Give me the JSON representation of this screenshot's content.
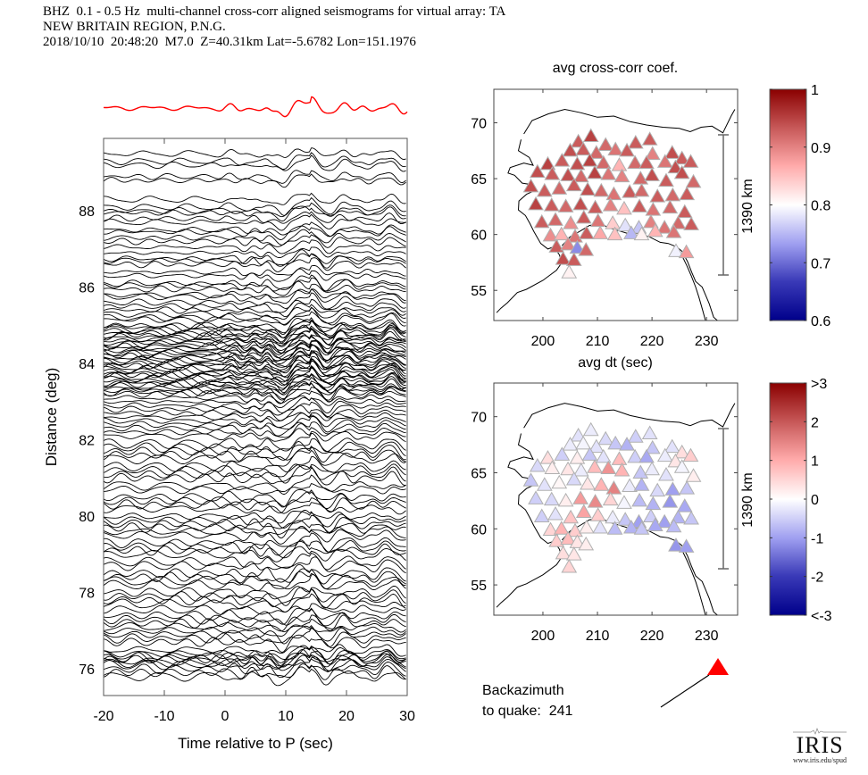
{
  "header": {
    "line1": "BHZ  0.1 - 0.5 Hz  multi-channel cross-corr aligned seismograms for virtual array: TA",
    "line2": "NEW BRITAIN REGION, P.N.G.",
    "line3": "2018/10/10  20:48:20  M7.0  Z=40.31km Lat=-5.6782 Lon=151.1976"
  },
  "backazimuth": {
    "line1": "Backazimuth",
    "line2": "to quake:  241",
    "value_deg": 241,
    "marker_color": "#ff0000"
  },
  "logo": {
    "name": "IRIS",
    "url_text": "www.iris.edu/spud"
  },
  "chart_data": [
    {
      "type": "line",
      "name": "record-section",
      "title": "",
      "xlabel": "Time relative to P (sec)",
      "ylabel": "Distance (deg)",
      "xlim": [
        -20,
        30
      ],
      "ylim": [
        75.3,
        89.9
      ],
      "xticks": [
        -20,
        -10,
        0,
        10,
        20,
        30
      ],
      "yticks": [
        76,
        78,
        80,
        82,
        84,
        86,
        88
      ],
      "trace_color": "#000000",
      "stack_color": "#ff0000",
      "stack_label": "stacked reference trace",
      "trace_distances": [
        89.5,
        89.3,
        89.2,
        88.9,
        88.8,
        88.3,
        88.1,
        88.0,
        87.95,
        87.8,
        87.7,
        87.5,
        87.45,
        87.3,
        87.2,
        87.05,
        86.9,
        86.75,
        86.7,
        86.6,
        86.4,
        86.3,
        86.1,
        86.05,
        85.95,
        85.8,
        85.75,
        85.6,
        85.5,
        85.4,
        85.3,
        85.2,
        85.15,
        85.0,
        84.95,
        84.9,
        84.85,
        84.8,
        84.75,
        84.7,
        84.65,
        84.6,
        84.55,
        84.5,
        84.45,
        84.4,
        84.35,
        84.3,
        84.25,
        84.2,
        84.15,
        84.1,
        84.05,
        84.0,
        83.95,
        83.9,
        83.85,
        83.8,
        83.75,
        83.7,
        83.65,
        83.6,
        83.55,
        83.5,
        83.45,
        83.4,
        83.35,
        83.3,
        83.25,
        83.2,
        83.1,
        83.0,
        82.9,
        82.8,
        82.7,
        82.6,
        82.5,
        82.4,
        82.3,
        82.2,
        82.1,
        81.9,
        81.8,
        81.7,
        81.6,
        81.5,
        81.3,
        81.2,
        81.1,
        81.0,
        80.8,
        80.7,
        80.5,
        80.4,
        80.3,
        80.2,
        80.0,
        79.9,
        79.8,
        79.7,
        79.6,
        79.5,
        79.3,
        79.2,
        79.1,
        79.0,
        78.8,
        78.7,
        78.5,
        78.4,
        78.3,
        78.2,
        78.0,
        77.9,
        77.8,
        77.7,
        77.55,
        77.4,
        77.3,
        77.2,
        77.1,
        77.0,
        76.9,
        76.8,
        76.7,
        76.5,
        76.4,
        76.35,
        76.3,
        76.25,
        76.2,
        76.15,
        76.1,
        76.0,
        75.9,
        75.8
      ]
    },
    {
      "type": "scatter",
      "name": "map-cross-corr",
      "title": "avg cross-corr coef.",
      "xlabel": "",
      "ylabel": "",
      "xlim": [
        191,
        235.7
      ],
      "ylim": [
        52.3,
        73.0
      ],
      "xticks": [
        200,
        210,
        220,
        230
      ],
      "yticks": [
        55,
        60,
        65,
        70
      ],
      "scale_bar_label": "1390 km",
      "colorbar": {
        "min": 0.6,
        "max": 1,
        "ticks": [
          "0.6",
          "0.7",
          "0.8",
          "0.9",
          "1"
        ],
        "colormap": "blue-white-red"
      }
    },
    {
      "type": "scatter",
      "name": "map-dt",
      "title": "avg dt (sec)",
      "xlabel": "",
      "ylabel": "",
      "xlim": [
        191,
        235.7
      ],
      "ylim": [
        52.3,
        73.0
      ],
      "xticks": [
        200,
        210,
        220,
        230
      ],
      "yticks": [
        55,
        60,
        65,
        70
      ],
      "scale_bar_label": "1390 km",
      "colorbar": {
        "min": -3,
        "max": 3,
        "ticks": [
          "<-3",
          "-2",
          "-1",
          "0",
          "1",
          "2",
          ">3"
        ],
        "colormap": "blue-white-red"
      }
    }
  ],
  "stations": [
    [
      206.5,
      68.3,
      0.93,
      -0.3
    ],
    [
      208.8,
      68.8,
      0.95,
      -0.2
    ],
    [
      211.5,
      68.0,
      0.92,
      -0.4
    ],
    [
      217.0,
      68.2,
      0.93,
      -0.5
    ],
    [
      219.6,
      68.5,
      0.93,
      -0.3
    ],
    [
      205.0,
      67.5,
      0.94,
      -0.2
    ],
    [
      207.4,
      67.6,
      0.93,
      -0.1
    ],
    [
      209.8,
      67.3,
      0.92,
      -0.3
    ],
    [
      213.3,
      67.6,
      0.91,
      -0.6
    ],
    [
      215.4,
      67.5,
      0.93,
      -0.8
    ],
    [
      220.1,
      67.2,
      0.9,
      -0.6
    ],
    [
      223.7,
      67.3,
      0.94,
      -0.3
    ],
    [
      225.5,
      66.8,
      0.93,
      0.4
    ],
    [
      200.9,
      66.3,
      0.95,
      0.4
    ],
    [
      203.5,
      66.6,
      0.93,
      -0.5
    ],
    [
      206.3,
      66.3,
      0.94,
      0.2
    ],
    [
      208.6,
      66.6,
      0.95,
      -0.6
    ],
    [
      211.1,
      66.4,
      0.92,
      -0.3
    ],
    [
      214.0,
      66.2,
      0.86,
      0.8
    ],
    [
      216.9,
      66.4,
      0.92,
      -0.5
    ],
    [
      219.0,
      66.4,
      0.93,
      -0.9
    ],
    [
      222.4,
      66.5,
      0.91,
      -0.2
    ],
    [
      224.3,
      66.0,
      0.94,
      0.3
    ],
    [
      227.1,
      66.5,
      0.93,
      0.6
    ],
    [
      199.0,
      65.6,
      0.94,
      -0.4
    ],
    [
      201.7,
      65.4,
      0.93,
      0.2
    ],
    [
      204.6,
      65.3,
      0.94,
      0.3
    ],
    [
      207.0,
      65.2,
      0.92,
      -0.2
    ],
    [
      209.5,
      65.5,
      0.95,
      0.8
    ],
    [
      212.0,
      65.4,
      0.91,
      1.3
    ],
    [
      214.5,
      65.2,
      0.9,
      0.9
    ],
    [
      217.9,
      65.0,
      0.92,
      -0.6
    ],
    [
      220.0,
      65.3,
      0.94,
      -0.2
    ],
    [
      222.6,
      64.8,
      0.93,
      -0.3
    ],
    [
      225.5,
      65.5,
      0.94,
      -0.1
    ],
    [
      227.6,
      64.7,
      0.92,
      0.2
    ],
    [
      197.8,
      64.3,
      0.94,
      -0.6
    ],
    [
      200.3,
      63.9,
      0.93,
      -0.3
    ],
    [
      203.0,
      64.1,
      0.92,
      0.1
    ],
    [
      205.7,
      64.4,
      0.93,
      -0.4
    ],
    [
      208.2,
      64.0,
      0.94,
      0.3
    ],
    [
      210.7,
      63.9,
      0.92,
      0.9
    ],
    [
      213.0,
      63.6,
      0.91,
      1.5
    ],
    [
      215.9,
      63.8,
      0.93,
      -0.2
    ],
    [
      218.1,
      63.9,
      0.92,
      -0.8
    ],
    [
      221.0,
      63.4,
      0.93,
      -0.4
    ],
    [
      223.8,
      63.5,
      0.92,
      -1.0
    ],
    [
      226.4,
      63.6,
      0.93,
      -0.6
    ],
    [
      198.7,
      62.7,
      0.95,
      -0.5
    ],
    [
      201.6,
      62.6,
      0.93,
      -0.4
    ],
    [
      204.2,
      62.5,
      0.92,
      0.2
    ],
    [
      206.9,
      62.7,
      0.94,
      1.2
    ],
    [
      209.6,
      62.4,
      0.93,
      1.4
    ],
    [
      212.4,
      62.6,
      0.9,
      0.5
    ],
    [
      214.9,
      62.3,
      0.85,
      -0.1
    ],
    [
      217.7,
      62.5,
      0.93,
      -0.7
    ],
    [
      220.2,
      62.2,
      0.91,
      -0.8
    ],
    [
      223.3,
      62.4,
      0.92,
      -1.1
    ],
    [
      226.0,
      62.0,
      0.93,
      -0.9
    ],
    [
      199.8,
      61.1,
      0.93,
      -0.5
    ],
    [
      202.3,
      61.3,
      0.92,
      -0.3
    ],
    [
      205.1,
      61.0,
      0.89,
      0.7
    ],
    [
      207.5,
      61.5,
      0.93,
      1.1
    ],
    [
      210.1,
      61.2,
      0.91,
      0.6
    ],
    [
      212.8,
      61.0,
      0.84,
      -0.2
    ],
    [
      215.1,
      60.8,
      0.78,
      -0.6
    ],
    [
      217.6,
      60.6,
      0.76,
      -1.0
    ],
    [
      219.8,
      61.1,
      0.9,
      -0.5
    ],
    [
      222.3,
      60.6,
      0.91,
      -1.0
    ],
    [
      224.8,
      61.0,
      0.92,
      -0.8
    ],
    [
      227.2,
      60.9,
      0.93,
      -0.6
    ],
    [
      201.4,
      59.9,
      0.89,
      0.5
    ],
    [
      203.4,
      60.0,
      0.86,
      0.9
    ],
    [
      205.9,
      59.8,
      0.91,
      0.6
    ],
    [
      208.0,
      60.1,
      0.93,
      0.2
    ],
    [
      210.5,
      60.1,
      0.87,
      -0.3
    ],
    [
      213.2,
      60.0,
      0.85,
      -0.7
    ],
    [
      216.2,
      60.1,
      0.75,
      -0.8
    ],
    [
      218.1,
      60.0,
      0.81,
      -0.6
    ],
    [
      220.6,
      60.3,
      0.86,
      -0.9
    ],
    [
      224.0,
      60.2,
      0.91,
      -0.7
    ],
    [
      202.5,
      58.9,
      0.93,
      0.6
    ],
    [
      204.6,
      59.1,
      0.9,
      0.8
    ],
    [
      206.3,
      58.8,
      0.72,
      0.3
    ],
    [
      207.9,
      58.6,
      0.92,
      0.2
    ],
    [
      224.4,
      58.5,
      0.79,
      -1.1
    ],
    [
      226.3,
      58.4,
      0.88,
      -1.0
    ],
    [
      203.7,
      57.8,
      0.94,
      0.4
    ],
    [
      205.7,
      57.7,
      0.93,
      0.3
    ],
    [
      204.8,
      56.6,
      0.81,
      0.5
    ]
  ]
}
